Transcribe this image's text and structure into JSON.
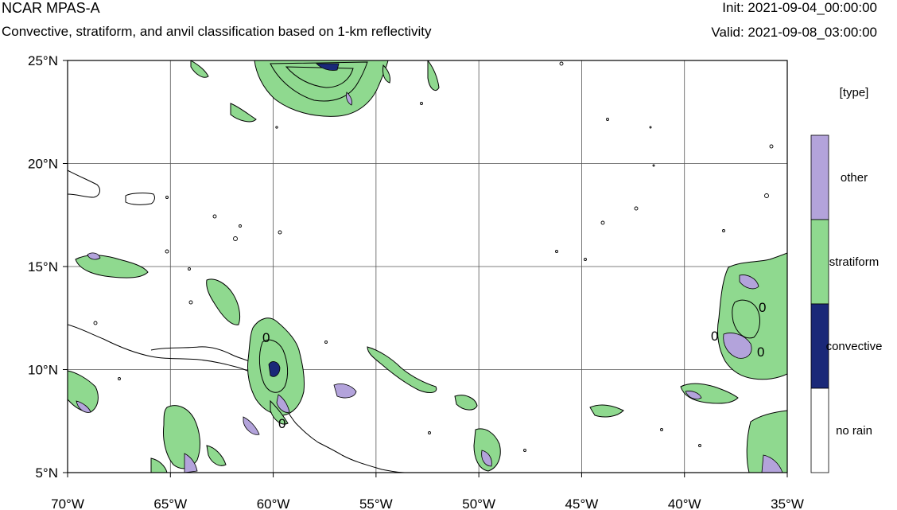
{
  "header": {
    "model": "NCAR MPAS-A",
    "description": "Convective, stratiform, and anvil classification based on 1-km reflectivity",
    "init_label": "Init:",
    "init_time": "2021-09-04_00:00:00",
    "valid_label": "Valid:",
    "valid_time": "2021-09-08_03:00:00"
  },
  "map": {
    "lon_range": [
      -70,
      -35
    ],
    "lat_range": [
      5,
      25
    ],
    "lon_ticks": [
      {
        "value": -70,
        "label": "70°W"
      },
      {
        "value": -65,
        "label": "65°W"
      },
      {
        "value": -60,
        "label": "60°W"
      },
      {
        "value": -55,
        "label": "55°W"
      },
      {
        "value": -50,
        "label": "50°W"
      },
      {
        "value": -45,
        "label": "45°W"
      },
      {
        "value": -40,
        "label": "40°W"
      },
      {
        "value": -35,
        "label": "35°W"
      }
    ],
    "lat_ticks": [
      {
        "value": 25,
        "label": "25°N"
      },
      {
        "value": 20,
        "label": "20°N"
      },
      {
        "value": 15,
        "label": "15°N"
      },
      {
        "value": 10,
        "label": "10°N"
      },
      {
        "value": 5,
        "label": "5°N"
      }
    ],
    "gridlines": true,
    "colors": {
      "stratiform": "#8fd98f",
      "convective": "#1a2878",
      "other": "#b3a3db",
      "no_rain": "#ffffff",
      "outline": "#000000"
    }
  },
  "legend": {
    "title": "[type]",
    "items": [
      {
        "label": "other",
        "color": "#b3a3db"
      },
      {
        "label": "stratiform",
        "color": "#8fd98f"
      },
      {
        "label": "convective",
        "color": "#1a2878"
      },
      {
        "label": "no rain",
        "color": "#ffffff"
      }
    ]
  },
  "contour_labels": [
    "0",
    "0",
    "0",
    "0",
    "0"
  ]
}
